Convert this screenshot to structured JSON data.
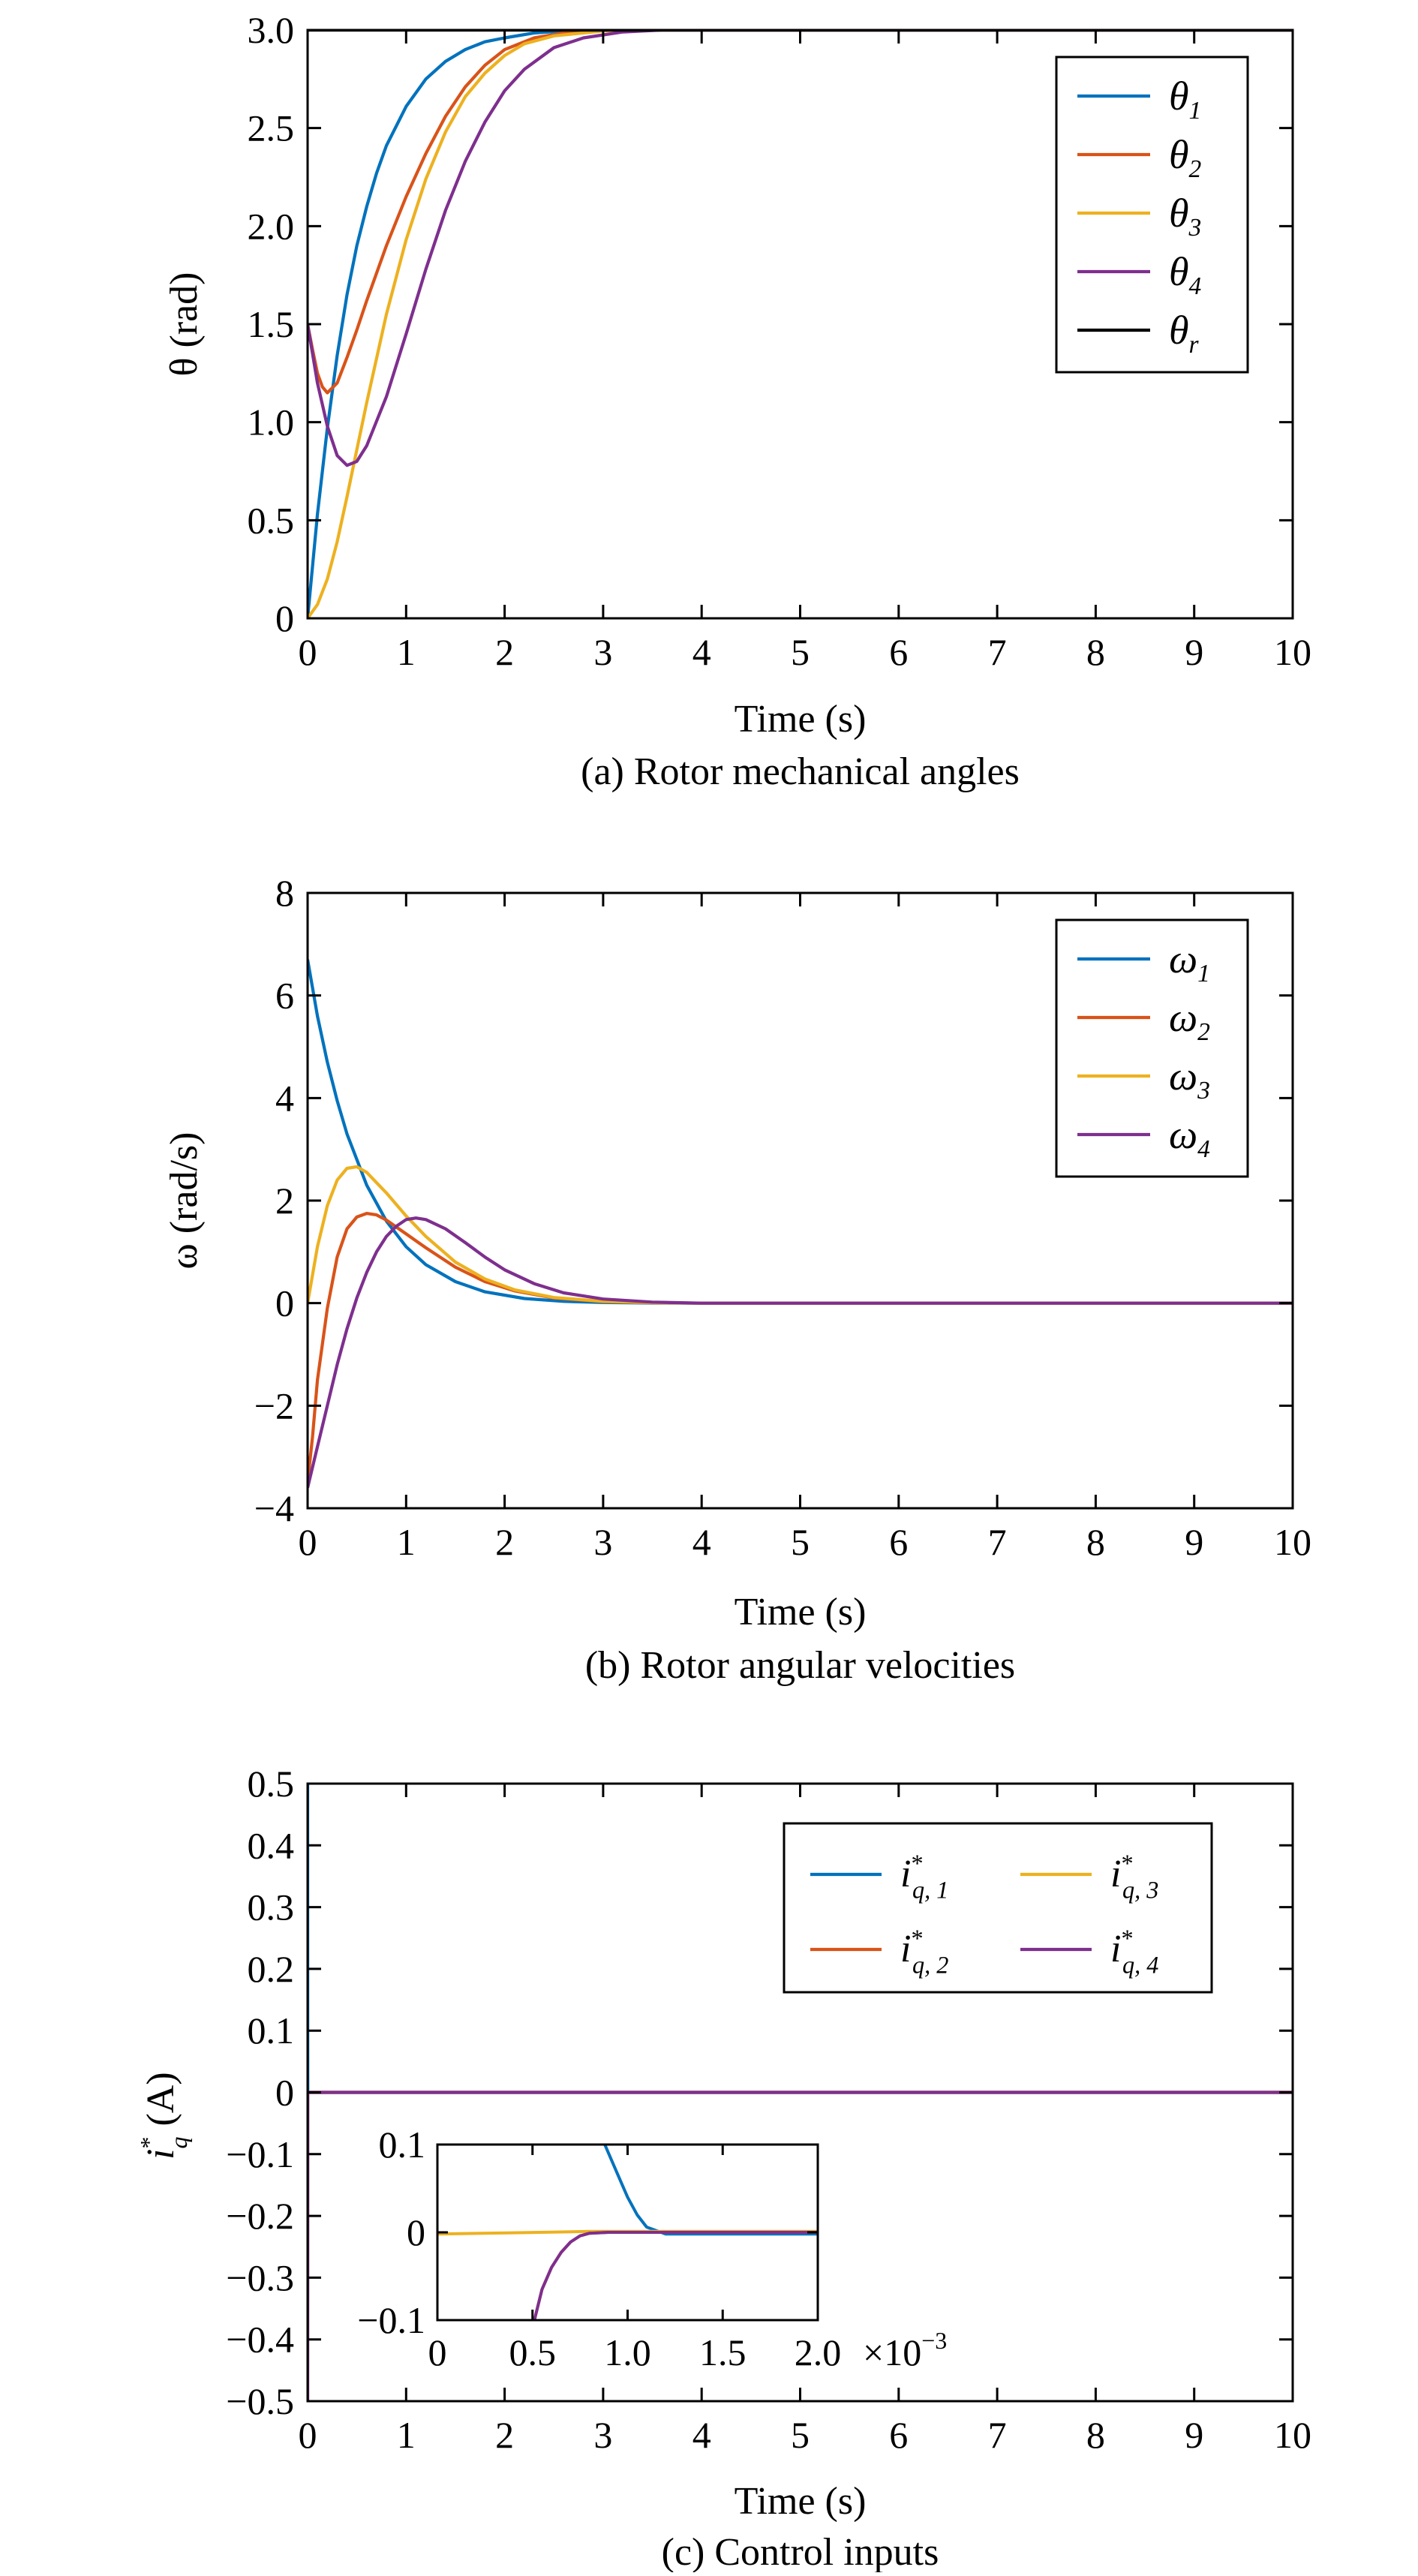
{
  "figure": {
    "captions": [
      "(a) Rotor mechanical angles",
      "(b) Rotor angular velocities",
      "(c) Control inputs"
    ]
  },
  "chart_data": [
    {
      "type": "line",
      "caption": "(a) Rotor mechanical angles",
      "xlabel": "Time (s)",
      "ylabel": "θ (rad)",
      "xlim": [
        0,
        10
      ],
      "ylim": [
        0,
        3.0
      ],
      "xticks": [
        0,
        1,
        2,
        3,
        4,
        5,
        6,
        7,
        8,
        9,
        10
      ],
      "yticks": [
        0,
        0.5,
        1.0,
        1.5,
        2.0,
        2.5,
        3.0
      ],
      "yticklabels": [
        "0",
        "0.5",
        "1.0",
        "1.5",
        "2.0",
        "2.5",
        "3.0"
      ],
      "grid": false,
      "legend": "top-right",
      "series": [
        {
          "name": "θ1",
          "label_main": "θ",
          "label_sub": "1",
          "color": "#0072BD",
          "x": [
            0,
            0.1,
            0.2,
            0.3,
            0.4,
            0.5,
            0.6,
            0.7,
            0.8,
            1.0,
            1.2,
            1.4,
            1.6,
            1.8,
            2.0,
            2.3,
            2.6,
            3.0,
            4.0,
            10
          ],
          "y": [
            0,
            0.53,
            0.97,
            1.34,
            1.65,
            1.9,
            2.1,
            2.27,
            2.41,
            2.61,
            2.75,
            2.84,
            2.9,
            2.94,
            2.96,
            2.985,
            2.995,
            3.0,
            3.0,
            3.0
          ]
        },
        {
          "name": "θ2",
          "label_main": "θ",
          "label_sub": "2",
          "color": "#D95319",
          "x": [
            0,
            0.05,
            0.1,
            0.15,
            0.2,
            0.3,
            0.4,
            0.5,
            0.6,
            0.8,
            1.0,
            1.2,
            1.4,
            1.6,
            1.8,
            2.0,
            2.3,
            2.6,
            3.0,
            4.0,
            10
          ],
          "y": [
            1.5,
            1.37,
            1.25,
            1.18,
            1.15,
            1.2,
            1.33,
            1.47,
            1.62,
            1.9,
            2.15,
            2.37,
            2.56,
            2.71,
            2.82,
            2.9,
            2.96,
            2.985,
            3.0,
            3.0,
            3.0
          ]
        },
        {
          "name": "θ3",
          "label_main": "θ",
          "label_sub": "3",
          "color": "#EDB120",
          "x": [
            0,
            0.1,
            0.2,
            0.3,
            0.4,
            0.5,
            0.6,
            0.8,
            1.0,
            1.2,
            1.4,
            1.6,
            1.8,
            2.0,
            2.2,
            2.5,
            3.0,
            3.5,
            4.0,
            10
          ],
          "y": [
            0,
            0.07,
            0.2,
            0.39,
            0.62,
            0.86,
            1.1,
            1.55,
            1.93,
            2.24,
            2.48,
            2.66,
            2.78,
            2.87,
            2.93,
            2.97,
            2.995,
            3.0,
            3.0,
            3.0
          ]
        },
        {
          "name": "θ4",
          "label_main": "θ",
          "label_sub": "4",
          "color": "#7E2F8E",
          "x": [
            0,
            0.1,
            0.2,
            0.3,
            0.4,
            0.5,
            0.6,
            0.8,
            1.0,
            1.2,
            1.4,
            1.6,
            1.8,
            2.0,
            2.2,
            2.5,
            2.8,
            3.2,
            3.6,
            4.0,
            10
          ],
          "y": [
            1.5,
            1.2,
            0.98,
            0.83,
            0.78,
            0.8,
            0.88,
            1.13,
            1.45,
            1.78,
            2.08,
            2.33,
            2.53,
            2.69,
            2.8,
            2.91,
            2.96,
            2.99,
            3.0,
            3.0,
            3.0
          ]
        },
        {
          "name": "θr",
          "label_main": "θ",
          "label_sub": "r",
          "color": "#000000",
          "x": [
            0,
            10
          ],
          "y": [
            3.0,
            3.0
          ]
        }
      ]
    },
    {
      "type": "line",
      "caption": "(b) Rotor angular velocities",
      "xlabel": "Time (s)",
      "ylabel": "ω (rad/s)",
      "xlim": [
        0,
        10
      ],
      "ylim": [
        -4,
        8
      ],
      "xticks": [
        0,
        1,
        2,
        3,
        4,
        5,
        6,
        7,
        8,
        9,
        10
      ],
      "yticks": [
        -4,
        -2,
        0,
        2,
        4,
        6,
        8
      ],
      "yticklabels": [
        "−4",
        "−2",
        "0",
        "2",
        "4",
        "6",
        "8"
      ],
      "grid": false,
      "legend": "top-right",
      "series": [
        {
          "name": "ω1",
          "label_main": "ω",
          "label_sub": "1",
          "color": "#0072BD",
          "x": [
            0,
            0.1,
            0.2,
            0.3,
            0.4,
            0.6,
            0.8,
            1.0,
            1.2,
            1.5,
            1.8,
            2.2,
            2.6,
            3.0,
            3.5,
            4.0,
            10
          ],
          "y": [
            6.7,
            5.6,
            4.7,
            3.95,
            3.3,
            2.3,
            1.6,
            1.1,
            0.75,
            0.42,
            0.22,
            0.09,
            0.035,
            0.012,
            0.003,
            0,
            0
          ]
        },
        {
          "name": "ω2",
          "label_main": "ω",
          "label_sub": "2",
          "color": "#D95319",
          "x": [
            0,
            0.05,
            0.1,
            0.2,
            0.3,
            0.4,
            0.5,
            0.6,
            0.7,
            0.8,
            1.0,
            1.2,
            1.5,
            1.8,
            2.1,
            2.5,
            3.0,
            3.5,
            4.0,
            10
          ],
          "y": [
            -3.5,
            -2.6,
            -1.5,
            -0.1,
            0.9,
            1.45,
            1.68,
            1.75,
            1.72,
            1.62,
            1.35,
            1.08,
            0.7,
            0.42,
            0.24,
            0.1,
            0.03,
            0.008,
            0,
            0
          ]
        },
        {
          "name": "ω3",
          "label_main": "ω",
          "label_sub": "3",
          "color": "#EDB120",
          "x": [
            0,
            0.1,
            0.2,
            0.3,
            0.4,
            0.5,
            0.6,
            0.8,
            1.0,
            1.2,
            1.5,
            1.8,
            2.1,
            2.5,
            3.0,
            3.5,
            4.0,
            10
          ],
          "y": [
            0,
            1.1,
            1.9,
            2.4,
            2.63,
            2.66,
            2.55,
            2.15,
            1.7,
            1.3,
            0.8,
            0.47,
            0.26,
            0.11,
            0.035,
            0.01,
            0,
            0
          ]
        },
        {
          "name": "ω4",
          "label_main": "ω",
          "label_sub": "4",
          "color": "#7E2F8E",
          "x": [
            0,
            0.1,
            0.2,
            0.3,
            0.4,
            0.5,
            0.6,
            0.7,
            0.8,
            0.9,
            1.0,
            1.1,
            1.2,
            1.4,
            1.6,
            1.8,
            2.0,
            2.3,
            2.6,
            3.0,
            3.5,
            4.0,
            10
          ],
          "y": [
            -3.6,
            -2.8,
            -2.0,
            -1.2,
            -0.5,
            0.1,
            0.6,
            1.0,
            1.3,
            1.5,
            1.63,
            1.66,
            1.63,
            1.45,
            1.18,
            0.9,
            0.65,
            0.38,
            0.2,
            0.08,
            0.02,
            0,
            0
          ]
        }
      ]
    },
    {
      "type": "line",
      "caption": "(c) Control inputs",
      "xlabel": "Time (s)",
      "ylabel_main": "i",
      "ylabel_sup": "*",
      "ylabel_sub": "q",
      "ylabel_unit": "(A)",
      "xlim": [
        0,
        10
      ],
      "ylim": [
        -0.5,
        0.5
      ],
      "xticks": [
        0,
        1,
        2,
        3,
        4,
        5,
        6,
        7,
        8,
        9,
        10
      ],
      "yticks": [
        -0.5,
        -0.4,
        -0.3,
        -0.2,
        -0.1,
        0,
        0.1,
        0.2,
        0.3,
        0.4,
        0.5
      ],
      "yticklabels": [
        "−0.5",
        "−0.4",
        "−0.3",
        "−0.2",
        "−0.1",
        "0",
        "0.1",
        "0.2",
        "0.3",
        "0.4",
        "0.5"
      ],
      "grid": false,
      "legend": "top-right, two columns",
      "series": [
        {
          "name": "i*q,1",
          "label_main": "i",
          "label_sup": "*",
          "label_sub": "q, 1",
          "color": "#0072BD",
          "x": [
            0,
            0.0009,
            0.0012,
            10
          ],
          "y": [
            0.5,
            0.1,
            0,
            0
          ]
        },
        {
          "name": "i*q,2",
          "label_main": "i",
          "label_sup": "*",
          "label_sub": "q, 2",
          "color": "#D95319",
          "x": [
            0,
            0.0008,
            0.001,
            10
          ],
          "y": [
            -0.5,
            -0.1,
            0,
            0
          ]
        },
        {
          "name": "i*q,3",
          "label_main": "i",
          "label_sup": "*",
          "label_sub": "q, 3",
          "color": "#EDB120",
          "x": [
            0,
            10
          ],
          "y": [
            0,
            0
          ]
        },
        {
          "name": "i*q,4",
          "label_main": "i",
          "label_sup": "*",
          "label_sub": "q, 4",
          "color": "#7E2F8E",
          "x": [
            0,
            0.0008,
            0.001,
            10
          ],
          "y": [
            -0.5,
            -0.1,
            0,
            0
          ]
        }
      ],
      "inset": {
        "xlim": [
          0,
          0.002
        ],
        "ylim": [
          -0.1,
          0.1
        ],
        "xticks": [
          0,
          0.0005,
          0.001,
          0.0015,
          0.002
        ],
        "xticklabels": [
          "0",
          "0.5",
          "1.0",
          "1.5",
          "2.0"
        ],
        "xscale_label_main": "×10",
        "xscale_label_exp": "−3",
        "yticks": [
          -0.1,
          0,
          0.1
        ],
        "yticklabels": [
          "−0.1",
          "0",
          "0.1"
        ],
        "series": [
          {
            "name": "i*q,1",
            "color": "#0072BD",
            "x": [
              0.00088,
              0.00095,
              0.001,
              0.00105,
              0.0011,
              0.0012,
              0.002
            ],
            "y": [
              0.1,
              0.065,
              0.04,
              0.02,
              0.006,
              -0.002,
              -0.002
            ]
          },
          {
            "name": "i*q,3",
            "color": "#EDB120",
            "x": [
              0,
              0.0004,
              0.0008,
              0.002
            ],
            "y": [
              -0.002,
              -0.0005,
              0.001,
              0.001
            ]
          },
          {
            "name": "i*q,2",
            "color": "#D95319",
            "x": [
              0.00051,
              0.00055,
              0.0006,
              0.00065,
              0.0007,
              0.00075,
              0.0008,
              0.0009,
              0.002
            ],
            "y": [
              -0.1,
              -0.065,
              -0.04,
              -0.023,
              -0.011,
              -0.004,
              -0.001,
              0,
              0
            ]
          },
          {
            "name": "i*q,4",
            "color": "#7E2F8E",
            "x": [
              0.00051,
              0.00055,
              0.0006,
              0.00065,
              0.0007,
              0.00075,
              0.0008,
              0.0009,
              0.002
            ],
            "y": [
              -0.1,
              -0.065,
              -0.04,
              -0.023,
              -0.011,
              -0.004,
              -0.001,
              0,
              0
            ]
          }
        ]
      }
    }
  ]
}
